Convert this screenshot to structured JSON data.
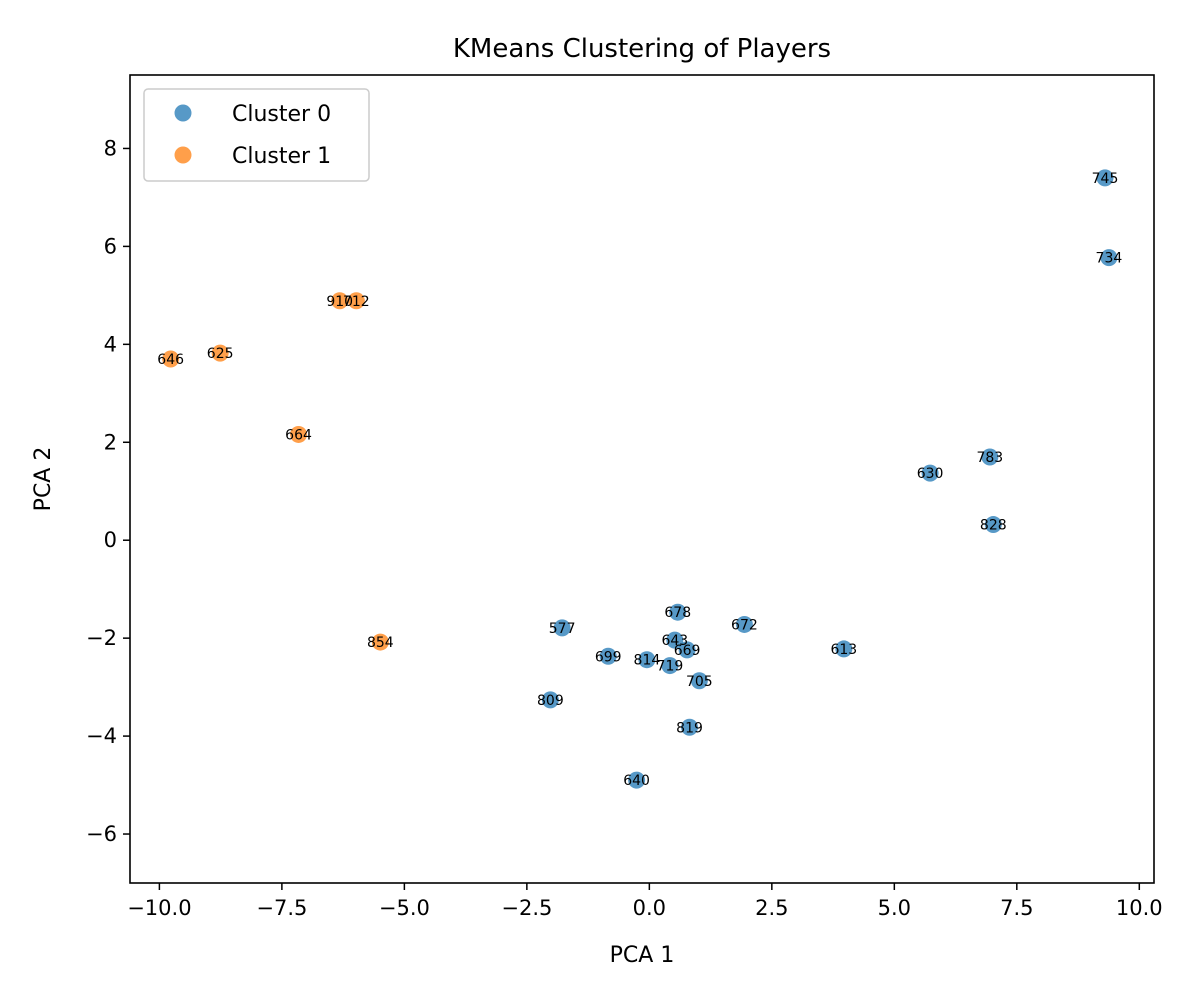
{
  "chart_data": {
    "type": "scatter",
    "title": "KMeans Clustering of Players",
    "xlabel": "PCA 1",
    "ylabel": "PCA 2",
    "xlim": [
      -10.6,
      10.3
    ],
    "ylim": [
      -7.0,
      9.5
    ],
    "xticks": [
      -10.0,
      -7.5,
      -5.0,
      -2.5,
      0.0,
      2.5,
      5.0,
      7.5,
      10.0
    ],
    "xtick_labels": [
      "−10.0",
      "−7.5",
      "−5.0",
      "−2.5",
      "0.0",
      "2.5",
      "5.0",
      "7.5",
      "10.0"
    ],
    "yticks": [
      -6,
      -4,
      -2,
      0,
      2,
      4,
      6,
      8
    ],
    "ytick_labels": [
      "−6",
      "−4",
      "−2",
      "0",
      "2",
      "4",
      "6",
      "8"
    ],
    "grid": false,
    "legend_position": "top-left",
    "series": [
      {
        "name": "Cluster 0",
        "color": "#1f77b4",
        "points": [
          {
            "x": 9.3,
            "y": 7.4,
            "label": "745"
          },
          {
            "x": 9.38,
            "y": 5.77,
            "label": "734"
          },
          {
            "x": 6.95,
            "y": 1.7,
            "label": "783"
          },
          {
            "x": 5.73,
            "y": 1.37,
            "label": "630"
          },
          {
            "x": 7.02,
            "y": 0.32,
            "label": "828"
          },
          {
            "x": 0.58,
            "y": -1.47,
            "label": "678"
          },
          {
            "x": 1.94,
            "y": -1.72,
            "label": "672"
          },
          {
            "x": -1.78,
            "y": -1.79,
            "label": "577"
          },
          {
            "x": 0.52,
            "y": -2.04,
            "label": "643"
          },
          {
            "x": 0.77,
            "y": -2.24,
            "label": "669"
          },
          {
            "x": 3.97,
            "y": -2.22,
            "label": "613"
          },
          {
            "x": -0.84,
            "y": -2.37,
            "label": "699"
          },
          {
            "x": -0.05,
            "y": -2.44,
            "label": "814"
          },
          {
            "x": 0.42,
            "y": -2.56,
            "label": "719"
          },
          {
            "x": 1.02,
            "y": -2.87,
            "label": "705"
          },
          {
            "x": -2.02,
            "y": -3.26,
            "label": "809"
          },
          {
            "x": 0.82,
            "y": -3.82,
            "label": "819"
          },
          {
            "x": -0.26,
            "y": -4.9,
            "label": "640"
          }
        ]
      },
      {
        "name": "Cluster 1",
        "color": "#ff7f0e",
        "points": [
          {
            "x": -6.32,
            "y": 4.89,
            "label": "910"
          },
          {
            "x": -5.98,
            "y": 4.89,
            "label": "712"
          },
          {
            "x": -8.76,
            "y": 3.82,
            "label": "625"
          },
          {
            "x": -9.77,
            "y": 3.7,
            "label": "646"
          },
          {
            "x": -7.16,
            "y": 2.16,
            "label": "664"
          },
          {
            "x": -5.49,
            "y": -2.08,
            "label": "854"
          }
        ]
      }
    ]
  }
}
